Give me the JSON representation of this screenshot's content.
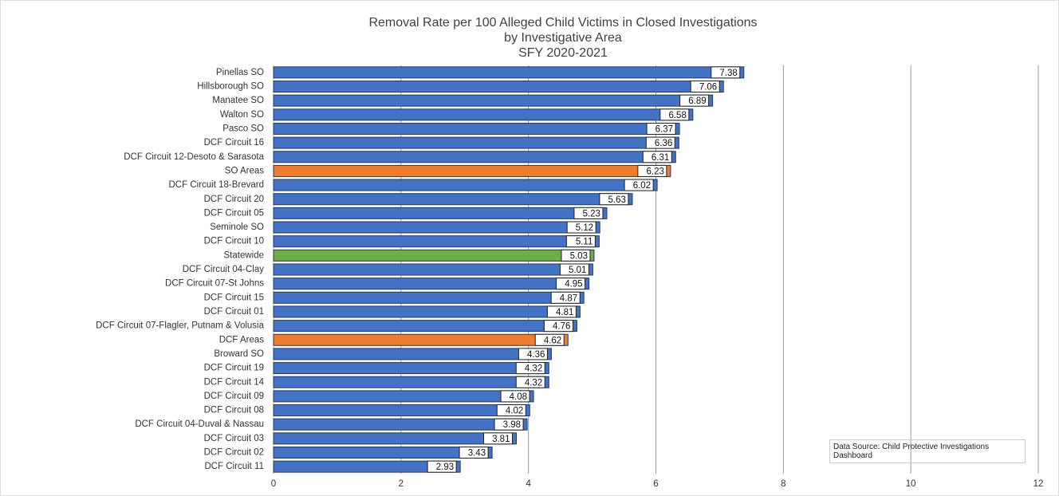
{
  "chart_data": {
    "type": "barh",
    "title": [
      "Removal Rate per 100 Alleged Child Victims in  Closed Investigations",
      "by Investigative Area",
      "SFY 2020-2021"
    ],
    "categories": [
      "Pinellas SO",
      "Hillsborough SO",
      "Manatee SO",
      "Walton SO",
      "Pasco SO",
      "DCF Circuit 16",
      "DCF Circuit 12-Desoto & Sarasota",
      "SO Areas",
      "DCF Circuit 18-Brevard",
      "DCF Circuit 20",
      "DCF Circuit 05",
      "Seminole SO",
      "DCF Circuit 10",
      "Statewide",
      "DCF Circuit 04-Clay",
      "DCF Circuit 07-St Johns",
      "DCF Circuit 15",
      "DCF Circuit 01",
      "DCF Circuit 07-Flagler, Putnam & Volusia",
      "DCF Areas",
      "Broward SO",
      "DCF Circuit 19",
      "DCF Circuit 14",
      "DCF Circuit 09",
      "DCF Circuit 08",
      "DCF Circuit 04-Duval  & Nassau",
      "DCF Circuit 03",
      "DCF Circuit 02",
      "DCF Circuit 11"
    ],
    "values": [
      7.38,
      7.06,
      6.89,
      6.58,
      6.37,
      6.36,
      6.31,
      6.23,
      6.02,
      5.63,
      5.23,
      5.12,
      5.11,
      5.03,
      5.01,
      4.95,
      4.87,
      4.81,
      4.76,
      4.62,
      4.36,
      4.32,
      4.32,
      4.08,
      4.02,
      3.98,
      3.81,
      3.43,
      2.93
    ],
    "colors": [
      "#4472c4",
      "#4472c4",
      "#4472c4",
      "#4472c4",
      "#4472c4",
      "#4472c4",
      "#4472c4",
      "#ed7d31",
      "#4472c4",
      "#4472c4",
      "#4472c4",
      "#4472c4",
      "#4472c4",
      "#70ad47",
      "#4472c4",
      "#4472c4",
      "#4472c4",
      "#4472c4",
      "#4472c4",
      "#ed7d31",
      "#4472c4",
      "#4472c4",
      "#4472c4",
      "#4472c4",
      "#4472c4",
      "#4472c4",
      "#4472c4",
      "#4472c4",
      "#4472c4"
    ],
    "xlim": [
      0,
      12
    ],
    "xticks": [
      0,
      2,
      4,
      6,
      8,
      10,
      12
    ],
    "grid": true,
    "annotation": "Data Source: Child Protective Investigations Dashboard"
  }
}
